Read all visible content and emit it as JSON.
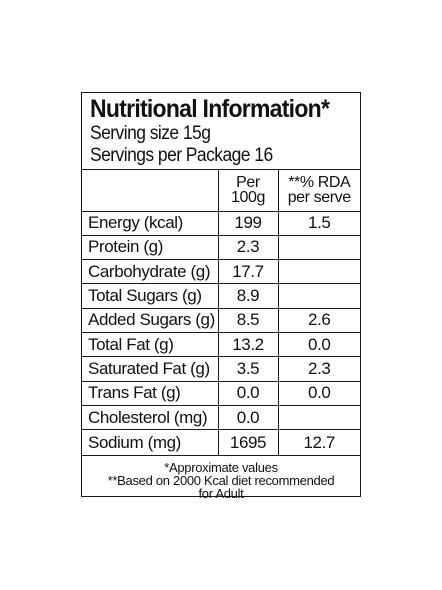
{
  "label": {
    "title": "Nutritional Information*",
    "serving_size": "Serving size 15g",
    "servings_per_package": "Servings per Package 16"
  },
  "columns": {
    "per_100g_line1": "Per",
    "per_100g_line2": "100g",
    "rda_line1": "**% RDA",
    "rda_line2": "per serve"
  },
  "rows": [
    {
      "name": "Energy (kcal)",
      "per100g": "199",
      "rda": "1.5"
    },
    {
      "name": "Protein (g)",
      "per100g": "2.3",
      "rda": ""
    },
    {
      "name": "Carbohydrate (g)",
      "per100g": "17.7",
      "rda": ""
    },
    {
      "name": "Total Sugars (g)",
      "per100g": "8.9",
      "rda": ""
    },
    {
      "name": "Added Sugars (g)",
      "per100g": "8.5",
      "rda": "2.6"
    },
    {
      "name": "Total Fat (g)",
      "per100g": "13.2",
      "rda": "0.0"
    },
    {
      "name": "Saturated Fat (g)",
      "per100g": "3.5",
      "rda": "2.3"
    },
    {
      "name": "Trans Fat (g)",
      "per100g": "0.0",
      "rda": "0.0"
    },
    {
      "name": "Cholesterol (mg)",
      "per100g": "0.0",
      "rda": ""
    },
    {
      "name": "Sodium (mg)",
      "per100g": "1695",
      "rda": "12.7"
    }
  ],
  "footnotes": {
    "approx": "*Approximate values",
    "rda_line1": "**Based on 2000 Kcal diet recommended",
    "rda_line2": "for Adult"
  }
}
